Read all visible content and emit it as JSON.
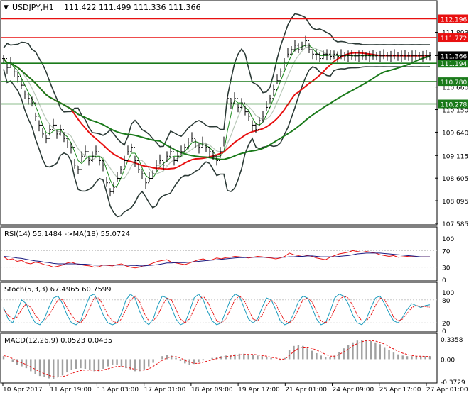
{
  "header": {
    "symbol": "USDJPY,H1",
    "ohlc": "111.422 111.499 111.336 111.366"
  },
  "colors": {
    "background": "#ffffff",
    "grid": "#c8c8c8",
    "frame": "#000000",
    "bb": "#2b3a36",
    "ma_short": "#1a8a1a",
    "ma_mid": "#b7c7b7",
    "ma_red": "#e81010",
    "ma_green": "#1a7a1a",
    "level_red": "#e81010",
    "level_green": "#1a7a1a",
    "label_red_bg": "#e81010",
    "label_green_bg": "#1a7a1a",
    "price_label_bg": "#000000",
    "rsi_line": "#e81010",
    "rsi_ma": "#1a1a80",
    "stoch_main": "#1a9bbd",
    "stoch_signal": "#e81010",
    "macd_hist": "#a0a0a0",
    "macd_signal": "#e81010"
  },
  "chart_data": [
    {
      "type": "line",
      "panel": "price",
      "title": "USDJPY,H1",
      "ylim": [
        107.585,
        112.3
      ],
      "y_ticks": [
        "111.893",
        "111.366",
        "110.660",
        "110.150",
        "109.640",
        "109.115",
        "108.605",
        "108.095",
        "107.585"
      ],
      "x_ticks": [
        "10 Apr 2017",
        "11 Apr 19:00",
        "13 Apr 03:00",
        "17 Apr 01:00",
        "18 Apr 09:00",
        "19 Apr 17:00",
        "21 Apr 01:00",
        "24 Apr 09:00",
        "25 Apr 17:00",
        "27 Apr 01:00"
      ],
      "current_price": "111.366",
      "levels": [
        {
          "value": 112.196,
          "label": "112.196",
          "color": "red"
        },
        {
          "value": 111.772,
          "label": "111.772",
          "color": "red"
        },
        {
          "value": 111.194,
          "label": "111.194",
          "color": "green"
        },
        {
          "value": 110.78,
          "label": "110.780",
          "color": "green"
        },
        {
          "value": 110.278,
          "label": "110.278",
          "color": "green"
        }
      ],
      "series": [
        {
          "role": "close",
          "x": [
            0,
            5,
            10,
            15,
            20,
            25,
            30,
            35,
            40,
            45,
            50,
            55,
            60,
            65,
            70,
            75,
            80,
            85,
            90,
            95,
            100,
            105,
            110,
            115,
            120,
            125,
            130,
            135,
            140,
            145,
            150,
            155,
            160,
            165,
            170,
            175,
            180,
            185,
            190,
            195,
            200,
            205,
            210,
            215,
            220,
            225,
            230,
            235,
            240,
            245,
            250,
            255,
            260,
            265,
            270,
            275,
            280,
            285,
            290,
            295,
            300,
            305,
            310,
            315,
            320,
            325,
            330,
            335,
            340,
            345,
            350,
            355,
            360,
            365,
            370,
            375,
            380,
            385,
            390,
            395,
            400,
            405,
            410,
            415,
            420,
            425,
            430,
            435,
            440,
            445,
            450,
            455,
            460,
            465,
            470,
            475,
            480,
            485,
            490,
            495,
            500,
            505,
            510,
            515,
            520,
            525,
            530,
            535,
            540,
            545,
            550,
            555,
            560,
            565,
            570,
            575,
            580,
            585,
            590,
            595,
            600
          ],
          "values": [
            111.3,
            111.1,
            111.2,
            111.0,
            110.9,
            110.7,
            110.5,
            110.4,
            110.3,
            110.0,
            109.8,
            109.6,
            109.5,
            109.7,
            109.8,
            109.6,
            109.7,
            109.5,
            109.4,
            109.3,
            108.9,
            108.8,
            109.1,
            109.2,
            109.0,
            109.1,
            109.2,
            109.0,
            108.9,
            108.5,
            108.3,
            108.4,
            108.6,
            108.8,
            109.0,
            109.2,
            109.3,
            109.0,
            108.8,
            108.7,
            108.5,
            108.6,
            108.7,
            108.9,
            109.0,
            108.9,
            109.1,
            109.2,
            109.0,
            109.1,
            109.2,
            109.3,
            109.4,
            109.5,
            109.4,
            109.3,
            109.4,
            109.3,
            109.2,
            109.1,
            109.0,
            109.2,
            109.4,
            110.4,
            110.3,
            110.4,
            110.2,
            110.3,
            110.1,
            110.0,
            109.8,
            109.7,
            109.9,
            110.0,
            110.2,
            110.4,
            110.6,
            110.8,
            111.0,
            111.2,
            111.4,
            111.5,
            111.6,
            111.5,
            111.6,
            111.7,
            111.5,
            111.4,
            111.4,
            111.3,
            111.4,
            111.4,
            111.35,
            111.4,
            111.35,
            111.37,
            111.36,
            111.37,
            111.36,
            111.36,
            111.37,
            111.36,
            111.37,
            111.36,
            111.36,
            111.37,
            111.36,
            111.37,
            111.36,
            111.36,
            111.37,
            111.36,
            111.37,
            111.36,
            111.36,
            111.37,
            111.36,
            111.37,
            111.36,
            111.36,
            111.366
          ]
        }
      ]
    },
    {
      "type": "line",
      "panel": "rsi",
      "label": "RSI(14) 55.1484 ->MA(18) 55.0724",
      "ylim": [
        0,
        100
      ],
      "y_ticks": [
        "100",
        "70",
        "30",
        "0"
      ],
      "series": [
        {
          "role": "rsi",
          "values": [
            55,
            48,
            50,
            44,
            46,
            40,
            38,
            42,
            40,
            36,
            34,
            30,
            32,
            35,
            40,
            42,
            38,
            36,
            34,
            33,
            30,
            31,
            35,
            34,
            33,
            36,
            38,
            33,
            30,
            28,
            30,
            34,
            36,
            40,
            44,
            46,
            48,
            42,
            40,
            38,
            36,
            40,
            44,
            48,
            50,
            46,
            48,
            52,
            50,
            53,
            54,
            56,
            55,
            54,
            52,
            54,
            56,
            55,
            53,
            52,
            50,
            52,
            56,
            64,
            60,
            58,
            60,
            58,
            56,
            52,
            50,
            48,
            54,
            58,
            62,
            64,
            66,
            70,
            68,
            66,
            68,
            66,
            64,
            60,
            58,
            56,
            58,
            54,
            55,
            56,
            55,
            55,
            55,
            55,
            55
          ]
        },
        {
          "role": "rsi_ma",
          "values": [
            56,
            55,
            54,
            52,
            51,
            49,
            47,
            45,
            44,
            42,
            41,
            39,
            38,
            38,
            38,
            38,
            38,
            37,
            37,
            36,
            35,
            35,
            35,
            35,
            35,
            35,
            35,
            35,
            34,
            34,
            33,
            33,
            34,
            35,
            36,
            38,
            40,
            40,
            41,
            41,
            41,
            42,
            43,
            44,
            45,
            46,
            47,
            48,
            49,
            50,
            51,
            52,
            53,
            53,
            54,
            54,
            54,
            54,
            54,
            54,
            54,
            54,
            54,
            55,
            55,
            56,
            56,
            57,
            57,
            56,
            55,
            55,
            55,
            55,
            56,
            57,
            58,
            60,
            62,
            63,
            64,
            64,
            64,
            64,
            63,
            62,
            61,
            60,
            59,
            58,
            57,
            56,
            55,
            55,
            55
          ]
        }
      ]
    },
    {
      "type": "line",
      "panel": "stoch",
      "label": "Stoch(5,3,3) 67.4965 60.7599",
      "ylim": [
        0,
        100
      ],
      "y_ticks": [
        "100",
        "80",
        "20",
        "0"
      ],
      "series": [
        {
          "role": "main",
          "values": [
            60,
            30,
            20,
            50,
            80,
            70,
            40,
            20,
            15,
            30,
            60,
            85,
            90,
            70,
            40,
            20,
            15,
            25,
            60,
            90,
            95,
            70,
            40,
            20,
            15,
            20,
            45,
            80,
            95,
            85,
            50,
            25,
            15,
            30,
            65,
            90,
            85,
            60,
            30,
            15,
            20,
            50,
            85,
            95,
            80,
            50,
            25,
            15,
            20,
            50,
            80,
            95,
            90,
            60,
            30,
            20,
            30,
            60,
            85,
            80,
            55,
            25,
            15,
            20,
            45,
            75,
            90,
            85,
            60,
            30,
            15,
            20,
            50,
            85,
            95,
            90,
            70,
            40,
            20,
            15,
            30,
            60,
            85,
            90,
            70,
            45,
            25,
            20,
            35,
            55,
            70,
            65,
            60,
            65,
            67
          ]
        },
        {
          "role": "signal",
          "values": [
            55,
            40,
            30,
            35,
            55,
            70,
            60,
            40,
            25,
            25,
            40,
            60,
            80,
            80,
            60,
            40,
            25,
            20,
            35,
            60,
            85,
            85,
            65,
            40,
            25,
            20,
            30,
            55,
            80,
            90,
            75,
            45,
            25,
            25,
            40,
            65,
            85,
            80,
            55,
            30,
            20,
            30,
            55,
            80,
            90,
            75,
            50,
            25,
            20,
            30,
            55,
            80,
            90,
            80,
            55,
            30,
            25,
            40,
            65,
            80,
            70,
            45,
            25,
            20,
            30,
            55,
            80,
            85,
            75,
            50,
            25,
            20,
            30,
            55,
            80,
            90,
            85,
            65,
            40,
            25,
            25,
            40,
            65,
            85,
            80,
            60,
            35,
            25,
            30,
            45,
            60,
            65,
            63,
            62,
            61
          ]
        }
      ]
    },
    {
      "type": "bar",
      "panel": "macd",
      "label": "MACD(12,26,9) 0.0523 0.0435",
      "ylim": [
        -0.3729,
        0.3358
      ],
      "y_ticks": [
        "0.3358",
        "0.00",
        "-0.3729"
      ],
      "series": [
        {
          "role": "histogram",
          "values": [
            0.05,
            0.0,
            -0.05,
            -0.1,
            -0.12,
            -0.15,
            -0.2,
            -0.25,
            -0.28,
            -0.3,
            -0.32,
            -0.33,
            -0.3,
            -0.27,
            -0.22,
            -0.18,
            -0.16,
            -0.15,
            -0.16,
            -0.18,
            -0.2,
            -0.2,
            -0.16,
            -0.12,
            -0.1,
            -0.1,
            -0.12,
            -0.15,
            -0.18,
            -0.2,
            -0.2,
            -0.17,
            -0.12,
            -0.06,
            0.0,
            0.05,
            0.07,
            0.06,
            0.02,
            -0.03,
            -0.07,
            -0.09,
            -0.08,
            -0.05,
            -0.02,
            0.0,
            0.02,
            0.04,
            0.05,
            0.06,
            0.07,
            0.08,
            0.09,
            0.09,
            0.08,
            0.07,
            0.06,
            0.05,
            0.03,
            0.02,
            0.0,
            -0.02,
            0.02,
            0.15,
            0.22,
            0.24,
            0.22,
            0.18,
            0.14,
            0.1,
            0.06,
            0.03,
            0.03,
            0.06,
            0.12,
            0.18,
            0.24,
            0.28,
            0.31,
            0.32,
            0.32,
            0.3,
            0.28,
            0.25,
            0.2,
            0.15,
            0.11,
            0.08,
            0.06,
            0.05,
            0.05,
            0.05,
            0.05,
            0.05,
            0.05
          ]
        },
        {
          "role": "signal",
          "values": [
            0.06,
            0.04,
            0.01,
            -0.03,
            -0.06,
            -0.09,
            -0.13,
            -0.17,
            -0.21,
            -0.24,
            -0.27,
            -0.29,
            -0.3,
            -0.29,
            -0.27,
            -0.24,
            -0.21,
            -0.19,
            -0.18,
            -0.18,
            -0.18,
            -0.19,
            -0.18,
            -0.16,
            -0.14,
            -0.12,
            -0.12,
            -0.13,
            -0.15,
            -0.17,
            -0.18,
            -0.18,
            -0.16,
            -0.12,
            -0.07,
            -0.02,
            0.02,
            0.04,
            0.04,
            0.02,
            -0.02,
            -0.05,
            -0.07,
            -0.07,
            -0.05,
            -0.03,
            -0.01,
            0.01,
            0.03,
            0.04,
            0.05,
            0.06,
            0.07,
            0.08,
            0.08,
            0.08,
            0.07,
            0.06,
            0.05,
            0.03,
            0.02,
            0.0,
            0.0,
            0.06,
            0.13,
            0.18,
            0.2,
            0.2,
            0.18,
            0.15,
            0.12,
            0.08,
            0.05,
            0.05,
            0.08,
            0.12,
            0.17,
            0.22,
            0.26,
            0.29,
            0.31,
            0.31,
            0.3,
            0.28,
            0.25,
            0.21,
            0.17,
            0.13,
            0.1,
            0.08,
            0.06,
            0.05,
            0.05,
            0.045,
            0.0435
          ]
        }
      ]
    }
  ]
}
